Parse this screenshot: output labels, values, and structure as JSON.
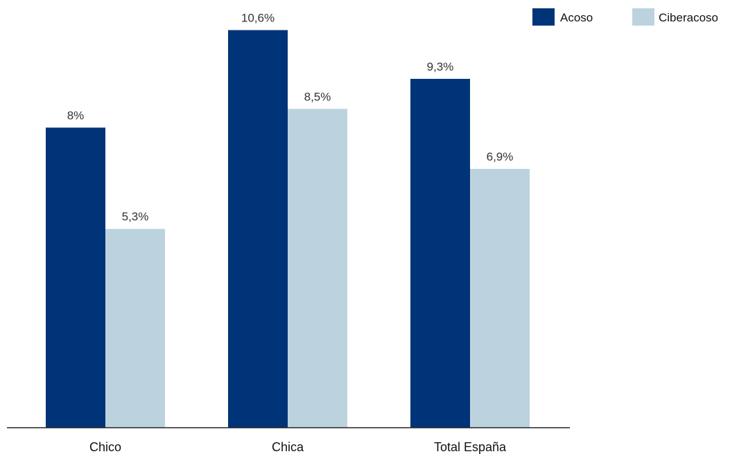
{
  "chart_data": {
    "type": "bar",
    "categories": [
      "Chico",
      "Chica",
      "Total España"
    ],
    "series": [
      {
        "name": "Acoso",
        "values": [
          8,
          10.6,
          9.3
        ],
        "labels": [
          "8%",
          "10,6%",
          "9,3%"
        ],
        "color": "#003478"
      },
      {
        "name": "Ciberacoso",
        "values": [
          5.3,
          8.5,
          6.9
        ],
        "labels": [
          "5,3%",
          "8,5%",
          "6,9%"
        ],
        "color": "#bcd3df"
      }
    ],
    "ylim": [
      0,
      11
    ],
    "grid": false,
    "legend_position": "top-right",
    "title": "",
    "xlabel": "",
    "ylabel": ""
  }
}
